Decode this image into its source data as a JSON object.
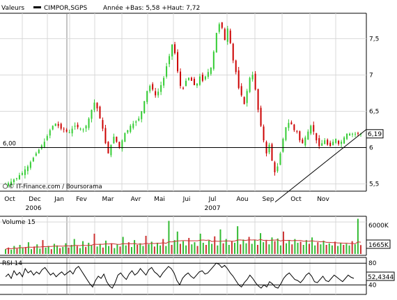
{
  "header": {
    "series_label": "Valeurs",
    "symbol": "CIMPOR,SGPS",
    "range_text": "Année +Bas: 5,58 +Haut: 7,72"
  },
  "watermark": "© IT-Finance.com / Boursorama",
  "panels": {
    "volume": {
      "title": "Volume 15"
    },
    "rsi": {
      "title": "RSI 14"
    }
  },
  "chart_data": [
    {
      "type": "candlestick",
      "title": "CIMPOR,SGPS",
      "range_low": 5.58,
      "range_high": 7.72,
      "ylim": [
        5.4,
        7.85
      ],
      "yticks": [
        "5,5",
        "6",
        "6,5",
        "7",
        "7,5"
      ],
      "ytick_values": [
        5.5,
        6,
        6.5,
        7,
        7.5
      ],
      "reference_line": {
        "value": 6.0,
        "label": "6,00"
      },
      "last_value": "6,19",
      "x_months": [
        "Oct",
        "Dec",
        "Jan",
        "Fev",
        "Mar",
        "Avr",
        "Mai",
        "Jui",
        "Jul",
        "Aou",
        "Sep",
        "Oct",
        "Nov"
      ],
      "x_years": [
        "2006",
        "2007"
      ],
      "close_trend": {
        "x": [
          0,
          4,
          8,
          12,
          16,
          20,
          24,
          28,
          32,
          36,
          40,
          44,
          48,
          52,
          56,
          60,
          64,
          68,
          72,
          76,
          80,
          84,
          88,
          92,
          96,
          100,
          104,
          108,
          112,
          116,
          120,
          124,
          128,
          132,
          136,
          140,
          144,
          148,
          152,
          156,
          160,
          164,
          168,
          172,
          176,
          180,
          184,
          188,
          192,
          196,
          200,
          204,
          208,
          212,
          216,
          220,
          224,
          228,
          232,
          236,
          240,
          244,
          248,
          252,
          256,
          260,
          264,
          268,
          272,
          276,
          280,
          284,
          288,
          292,
          296,
          300,
          304,
          308,
          312,
          316,
          320,
          324,
          328,
          332,
          336,
          340,
          344,
          348,
          352,
          356,
          360,
          364,
          368,
          372,
          376,
          380,
          384,
          388,
          392,
          396,
          400,
          404,
          408,
          412,
          416,
          420,
          424,
          428,
          432,
          436,
          440,
          444,
          448,
          452,
          456,
          460,
          464,
          468,
          472,
          476,
          480,
          484,
          488,
          492,
          496,
          500,
          504,
          508,
          512
        ],
        "close": [
          5.49,
          5.51,
          5.53,
          5.56,
          5.58,
          5.62,
          5.65,
          5.7,
          5.74,
          5.8,
          5.86,
          5.92,
          5.97,
          6.03,
          6.08,
          6.16,
          6.24,
          6.3,
          6.33,
          6.3,
          6.26,
          6.25,
          6.22,
          6.21,
          6.26,
          6.3,
          6.28,
          6.26,
          6.25,
          6.3,
          6.4,
          6.52,
          6.62,
          6.54,
          6.4,
          6.26,
          6.06,
          5.92,
          6.04,
          6.15,
          6.08,
          6.0,
          6.1,
          6.2,
          6.24,
          6.3,
          6.33,
          6.36,
          6.4,
          6.5,
          6.64,
          6.78,
          6.85,
          6.8,
          6.72,
          6.77,
          6.86,
          6.96,
          7.12,
          7.26,
          7.42,
          7.3,
          7.05,
          6.85,
          6.82,
          6.92,
          6.96,
          6.92,
          6.86,
          6.88,
          6.98,
          6.92,
          6.98,
          7.04,
          7.1,
          7.32,
          7.58,
          7.7,
          7.65,
          7.48,
          7.64,
          7.44,
          7.2,
          7.04,
          6.82,
          6.72,
          6.6,
          6.78,
          6.96,
          7.0,
          6.8,
          6.52,
          6.3,
          6.1,
          5.92,
          6.04,
          5.82,
          5.66,
          5.74,
          5.92,
          6.12,
          6.28,
          6.34,
          6.32,
          6.24,
          6.22,
          6.1,
          6.06,
          6.14,
          6.22,
          6.3,
          6.22,
          6.1,
          6.02,
          6.06,
          6.1,
          6.04,
          6.02,
          6.08,
          6.12,
          6.05,
          6.08,
          6.14,
          6.19,
          6.19,
          6.19,
          6.19,
          6.19,
          6.19
        ]
      },
      "up_color": "#33cc33",
      "down_color": "#cc0000",
      "support_line": {
        "from_value": 5.25,
        "to_value": 6.25
      }
    },
    {
      "type": "bar",
      "title": "Volume 15",
      "yticks": [
        "6000K"
      ],
      "last_value": "1665K",
      "moving_average_color": "#cc3333",
      "bar_color_up": "#33bb33",
      "bar_color_down": "#cc3333",
      "values_k": [
        900,
        1200,
        800,
        1500,
        1000,
        1700,
        1100,
        1300,
        2200,
        900,
        1400,
        1800,
        1000,
        2600,
        1200,
        1500,
        900,
        1900,
        1600,
        1100,
        1300,
        2000,
        1200,
        1700,
        2800,
        1500,
        1100,
        2400,
        1300,
        2100,
        1600,
        3800,
        1400,
        1900,
        1200,
        2500,
        1500,
        2000,
        1100,
        1800,
        1400,
        3200,
        1600,
        2200,
        1300,
        2600,
        1700,
        2000,
        1500,
        3400,
        1800,
        2300,
        1400,
        2100,
        1600,
        2800,
        1500,
        6200,
        1700,
        2600,
        4200,
        1900,
        2400,
        1600,
        3000,
        1800,
        2200,
        1500,
        3800,
        2100,
        1700,
        2500,
        1900,
        3300,
        1600,
        4600,
        2000,
        2800,
        1700,
        2400,
        2100,
        5200,
        1800,
        2700,
        2000,
        3200,
        1900,
        2600,
        1700,
        3900,
        2200,
        2500,
        1800,
        3100,
        2400,
        2900,
        1600,
        4200,
        2000,
        2500,
        1800,
        2800,
        2100,
        2300,
        1700,
        2600,
        1900,
        3100,
        1600,
        2200,
        1800,
        2500,
        1700,
        2000,
        1600,
        2300,
        1500,
        2100,
        1700,
        1900,
        1600,
        2400,
        1800,
        6600,
        1665
      ]
    },
    {
      "type": "line",
      "title": "RSI 14",
      "yticks": [
        "80",
        "40"
      ],
      "ytick_values": [
        80,
        40
      ],
      "last_value": "52,4344",
      "values": [
        55,
        60,
        52,
        66,
        58,
        63,
        55,
        70,
        62,
        66,
        58,
        64,
        60,
        68,
        72,
        65,
        58,
        62,
        55,
        60,
        64,
        58,
        62,
        66,
        60,
        70,
        74,
        66,
        58,
        50,
        42,
        36,
        48,
        56,
        52,
        60,
        46,
        38,
        34,
        44,
        58,
        62,
        55,
        50,
        60,
        66,
        58,
        62,
        70,
        64,
        58,
        68,
        72,
        64,
        60,
        54,
        62,
        68,
        74,
        70,
        62,
        48,
        40,
        52,
        58,
        62,
        56,
        52,
        58,
        64,
        66,
        60,
        62,
        68,
        74,
        80,
        78,
        72,
        76,
        70,
        62,
        56,
        48,
        40,
        36,
        44,
        50,
        58,
        52,
        44,
        38,
        34,
        40,
        36,
        46,
        42,
        36,
        34,
        42,
        52,
        58,
        62,
        56,
        50,
        48,
        44,
        50,
        58,
        62,
        56,
        46,
        44,
        50,
        56,
        48,
        46,
        52,
        58,
        54,
        50,
        46,
        52,
        58,
        54,
        52
      ]
    }
  ],
  "colors": {
    "grid": "#d8d8d8",
    "axis": "#000000",
    "badge_bg": "#ffffff"
  }
}
